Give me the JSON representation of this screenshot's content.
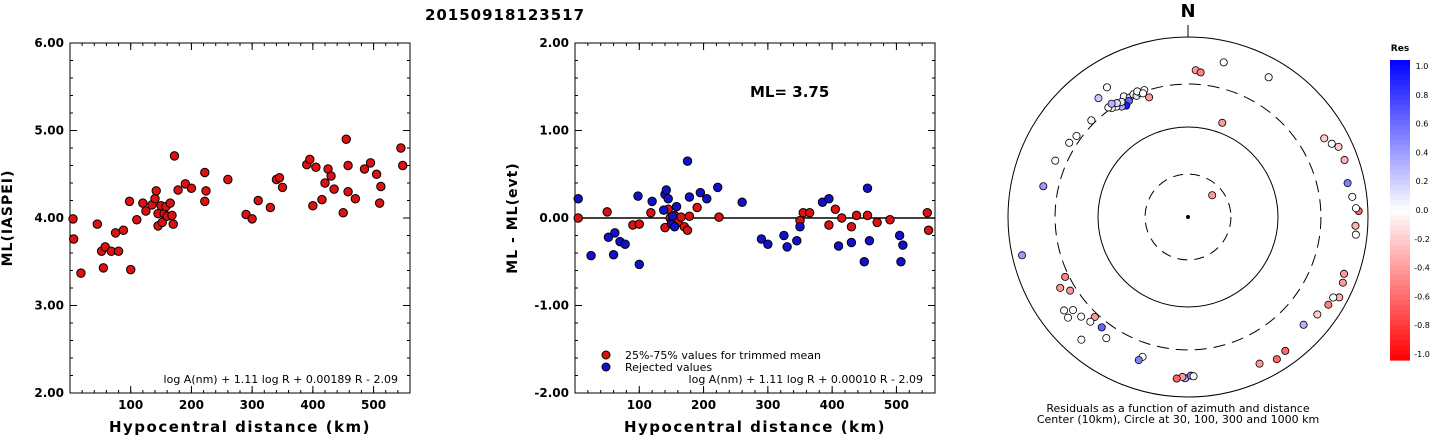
{
  "header": {
    "title": "20150918123517"
  },
  "chart_data": [
    {
      "type": "scatter",
      "ylabel": "ML(IASPEI)",
      "xlabel": "Hypocentral distance (km)",
      "xlim": [
        0,
        560
      ],
      "ylim": [
        2.0,
        6.0
      ],
      "yticks": [
        "6.00",
        "5.00",
        "4.00",
        "3.00",
        "2.00"
      ],
      "xticks": [
        "100",
        "200",
        "300",
        "400",
        "500"
      ],
      "formula": "log A(nm) + 1.11 log R + 0.00189 R - 2.09",
      "marker_color": "#dd1111",
      "points": [
        [
          5,
          3.99
        ],
        [
          6,
          3.76
        ],
        [
          18,
          3.37
        ],
        [
          45,
          3.93
        ],
        [
          52,
          3.62
        ],
        [
          55,
          3.43
        ],
        [
          58,
          3.67
        ],
        [
          68,
          3.62
        ],
        [
          75,
          3.83
        ],
        [
          80,
          3.62
        ],
        [
          88,
          3.86
        ],
        [
          98,
          4.19
        ],
        [
          100,
          3.41
        ],
        [
          110,
          3.98
        ],
        [
          120,
          4.17
        ],
        [
          125,
          4.08
        ],
        [
          135,
          4.15
        ],
        [
          140,
          4.22
        ],
        [
          142,
          4.31
        ],
        [
          145,
          3.91
        ],
        [
          145,
          4.05
        ],
        [
          150,
          4.14
        ],
        [
          152,
          3.95
        ],
        [
          155,
          4.05
        ],
        [
          158,
          4.13
        ],
        [
          160,
          4.02
        ],
        [
          165,
          4.17
        ],
        [
          168,
          4.03
        ],
        [
          170,
          3.93
        ],
        [
          172,
          4.71
        ],
        [
          178,
          4.32
        ],
        [
          190,
          4.39
        ],
        [
          200,
          4.34
        ],
        [
          222,
          4.19
        ],
        [
          222,
          4.52
        ],
        [
          224,
          4.31
        ],
        [
          260,
          4.44
        ],
        [
          290,
          4.04
        ],
        [
          300,
          3.99
        ],
        [
          310,
          4.2
        ],
        [
          330,
          4.12
        ],
        [
          340,
          4.44
        ],
        [
          345,
          4.46
        ],
        [
          350,
          4.35
        ],
        [
          390,
          4.61
        ],
        [
          395,
          4.67
        ],
        [
          400,
          4.14
        ],
        [
          405,
          4.58
        ],
        [
          415,
          4.21
        ],
        [
          420,
          4.4
        ],
        [
          425,
          4.56
        ],
        [
          430,
          4.48
        ],
        [
          435,
          4.33
        ],
        [
          450,
          4.06
        ],
        [
          455,
          4.9
        ],
        [
          458,
          4.6
        ],
        [
          458,
          4.3
        ],
        [
          470,
          4.22
        ],
        [
          485,
          4.56
        ],
        [
          495,
          4.63
        ],
        [
          505,
          4.5
        ],
        [
          510,
          4.17
        ],
        [
          512,
          4.36
        ],
        [
          545,
          4.8
        ],
        [
          548,
          4.6
        ]
      ]
    },
    {
      "type": "scatter",
      "ylabel": "ML - ML(evt)",
      "xlabel": "Hypocentral distance (km)",
      "xlim": [
        0,
        560
      ],
      "ylim": [
        -2.0,
        2.0
      ],
      "yticks": [
        "2.00",
        "1.00",
        "0.00",
        "-1.00",
        "-2.00"
      ],
      "xticks": [
        "100",
        "200",
        "300",
        "400",
        "500"
      ],
      "annotation": "ML= 3.75",
      "formula": "log A(nm) + 1.11 log R + 0.00010 R - 2.09",
      "legend": [
        {
          "label": "25%-75% values for trimmed mean",
          "color": "#dd1111"
        },
        {
          "label": "Rejected values",
          "color": "#1111cc"
        }
      ],
      "series": [
        {
          "color": "#dd1111",
          "points": [
            [
              5,
              0.0
            ],
            [
              50,
              0.07
            ],
            [
              90,
              -0.08
            ],
            [
              100,
              -0.07
            ],
            [
              118,
              0.06
            ],
            [
              140,
              -0.11
            ],
            [
              145,
              0.1
            ],
            [
              148,
              0.0
            ],
            [
              150,
              -0.05
            ],
            [
              155,
              0.03
            ],
            [
              160,
              -0.05
            ],
            [
              165,
              0.01
            ],
            [
              170,
              -0.1
            ],
            [
              175,
              -0.14
            ],
            [
              178,
              0.02
            ],
            [
              190,
              0.12
            ],
            [
              224,
              0.01
            ],
            [
              350,
              -0.03
            ],
            [
              355,
              0.06
            ],
            [
              365,
              0.06
            ],
            [
              395,
              -0.08
            ],
            [
              405,
              0.1
            ],
            [
              415,
              0.0
            ],
            [
              430,
              -0.1
            ],
            [
              438,
              0.03
            ],
            [
              455,
              0.03
            ],
            [
              470,
              -0.05
            ],
            [
              490,
              -0.02
            ],
            [
              548,
              0.06
            ],
            [
              550,
              -0.14
            ]
          ]
        },
        {
          "color": "#1111cc",
          "points": [
            [
              5,
              0.22
            ],
            [
              25,
              -0.43
            ],
            [
              52,
              -0.22
            ],
            [
              60,
              -0.42
            ],
            [
              62,
              -0.17
            ],
            [
              70,
              -0.27
            ],
            [
              78,
              -0.3
            ],
            [
              98,
              0.25
            ],
            [
              100,
              -0.53
            ],
            [
              120,
              0.19
            ],
            [
              138,
              0.09
            ],
            [
              140,
              0.27
            ],
            [
              142,
              0.32
            ],
            [
              145,
              0.22
            ],
            [
              150,
              -0.07
            ],
            [
              152,
              0.02
            ],
            [
              155,
              -0.1
            ],
            [
              158,
              0.13
            ],
            [
              175,
              0.65
            ],
            [
              178,
              0.24
            ],
            [
              195,
              0.29
            ],
            [
              205,
              0.22
            ],
            [
              222,
              0.35
            ],
            [
              260,
              0.18
            ],
            [
              290,
              -0.24
            ],
            [
              300,
              -0.3
            ],
            [
              325,
              -0.2
            ],
            [
              330,
              -0.33
            ],
            [
              345,
              -0.26
            ],
            [
              350,
              -0.1
            ],
            [
              385,
              0.18
            ],
            [
              395,
              0.22
            ],
            [
              410,
              -0.32
            ],
            [
              430,
              -0.28
            ],
            [
              450,
              -0.5
            ],
            [
              455,
              0.34
            ],
            [
              458,
              -0.26
            ],
            [
              505,
              -0.2
            ],
            [
              507,
              -0.5
            ],
            [
              510,
              -0.31
            ]
          ]
        }
      ]
    },
    {
      "type": "polar-scatter",
      "north_label": "N",
      "caption_line1": "Residuals as a function of azimuth and distance",
      "caption_line2": "Center (10km), Circle at 30, 100, 300 and 1000 km",
      "colorbar_title": "Res",
      "colorbar_ticks": [
        "1.0",
        "0.8",
        "0.6",
        "0.4",
        "0.2",
        "0.0",
        "-0.2",
        "-0.4",
        "-0.6",
        "-0.8",
        "-1.0"
      ],
      "stations": [
        {
          "az": 48,
          "dist": 23,
          "res": -0.4
        },
        {
          "az": 20,
          "dist": 130,
          "res": -0.4
        },
        {
          "az": 3,
          "dist": 430,
          "res": -0.4
        },
        {
          "az": 5,
          "dist": 410,
          "res": -0.5
        },
        {
          "az": 13,
          "dist": 580,
          "res": 0.0
        },
        {
          "az": 30,
          "dist": 620,
          "res": 0.0
        },
        {
          "az": 332,
          "dist": 330,
          "res": 0.05
        },
        {
          "az": 334,
          "dist": 300,
          "res": 0.2
        },
        {
          "az": 333,
          "dist": 280,
          "res": 0.6
        },
        {
          "az": 331,
          "dist": 260,
          "res": 0.9
        },
        {
          "az": 329,
          "dist": 270,
          "res": 0.3
        },
        {
          "az": 330,
          "dist": 300,
          "res": 0.1
        },
        {
          "az": 327,
          "dist": 290,
          "res": 0.0
        },
        {
          "az": 328,
          "dist": 310,
          "res": 0.15
        },
        {
          "az": 325,
          "dist": 300,
          "res": -0.05
        },
        {
          "az": 324,
          "dist": 320,
          "res": 0.0
        },
        {
          "az": 326,
          "dist": 330,
          "res": 0.3
        },
        {
          "az": 336,
          "dist": 310,
          "res": 0.0
        },
        {
          "az": 337,
          "dist": 290,
          "res": 0.1
        },
        {
          "az": 339,
          "dist": 300,
          "res": 0.0
        },
        {
          "az": 341,
          "dist": 310,
          "res": 0.0
        },
        {
          "az": 338,
          "dist": 320,
          "res": 0.0
        },
        {
          "az": 340,
          "dist": 290,
          "res": 0.0
        },
        {
          "az": 323,
          "dist": 450,
          "res": 0.2
        },
        {
          "az": 328,
          "dist": 500,
          "res": 0.0
        },
        {
          "az": 315,
          "dist": 330,
          "res": 0.0
        },
        {
          "az": 306,
          "dist": 340,
          "res": 0.0
        },
        {
          "az": 302,
          "dist": 360,
          "res": 0.0
        },
        {
          "az": 342,
          "dist": 250,
          "res": -0.4
        },
        {
          "az": 293,
          "dist": 400,
          "res": 0.0
        },
        {
          "az": 282,
          "dist": 440,
          "res": 0.4
        },
        {
          "az": 257,
          "dist": 780,
          "res": 0.4
        },
        {
          "az": 60,
          "dist": 560,
          "res": -0.2
        },
        {
          "az": 63,
          "dist": 620,
          "res": 0.0
        },
        {
          "az": 65,
          "dist": 700,
          "res": -0.2
        },
        {
          "az": 70,
          "dist": 710,
          "res": -0.3
        },
        {
          "az": 78,
          "dist": 650,
          "res": 0.5
        },
        {
          "az": 83,
          "dist": 690,
          "res": 0.0
        },
        {
          "az": 88,
          "dist": 790,
          "res": -0.6
        },
        {
          "az": 87,
          "dist": 740,
          "res": 0.0
        },
        {
          "az": 93,
          "dist": 730,
          "res": -0.3
        },
        {
          "az": 96,
          "dist": 750,
          "res": 0.0
        },
        {
          "az": 110,
          "dist": 700,
          "res": -0.4
        },
        {
          "az": 113,
          "dist": 740,
          "res": -0.4
        },
        {
          "az": 118,
          "dist": 800,
          "res": -0.3
        },
        {
          "az": 119,
          "dist": 700,
          "res": 0.0
        },
        {
          "az": 122,
          "dist": 690,
          "res": -0.5
        },
        {
          "az": 127,
          "dist": 630,
          "res": -0.2
        },
        {
          "az": 133,
          "dist": 570,
          "res": 0.3
        },
        {
          "az": 154,
          "dist": 650,
          "res": -0.4
        },
        {
          "az": 148,
          "dist": 730,
          "res": -0.6
        },
        {
          "az": 144,
          "dist": 690,
          "res": -0.6
        },
        {
          "az": 181,
          "dist": 620,
          "res": 0.3
        },
        {
          "az": 179,
          "dist": 580,
          "res": 0.5
        },
        {
          "az": 182,
          "dist": 600,
          "res": -0.4
        },
        {
          "az": 178,
          "dist": 590,
          "res": 0.0
        },
        {
          "az": 184,
          "dist": 630,
          "res": -0.6
        },
        {
          "az": 198,
          "dist": 430,
          "res": 0.0
        },
        {
          "az": 199,
          "dist": 480,
          "res": 0.5
        },
        {
          "az": 214,
          "dist": 420,
          "res": 0.0
        },
        {
          "az": 218,
          "dist": 360,
          "res": 0.6
        },
        {
          "az": 223,
          "dist": 330,
          "res": -0.4
        },
        {
          "az": 223,
          "dist": 390,
          "res": 0.0
        },
        {
          "az": 227,
          "dist": 420,
          "res": 0.0
        },
        {
          "az": 231,
          "dist": 440,
          "res": 0.0
        },
        {
          "az": 238,
          "dist": 350,
          "res": -0.4
        },
        {
          "az": 241,
          "dist": 420,
          "res": -0.4
        },
        {
          "az": 244,
          "dist": 330,
          "res": -0.5
        },
        {
          "az": 233,
          "dist": 530,
          "res": 0.0
        },
        {
          "az": 230,
          "dist": 550,
          "res": 0.0
        },
        {
          "az": 221,
          "dist": 640,
          "res": 0.0
        }
      ]
    }
  ]
}
